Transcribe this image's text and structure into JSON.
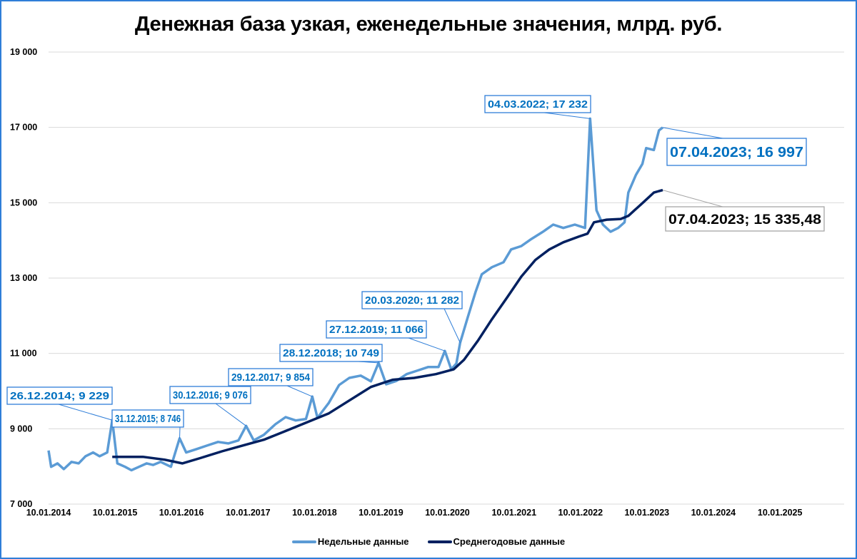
{
  "chart_data": {
    "type": "line",
    "title": "Денежная база узкая, еженедельные значения, млрд. руб.",
    "ylim": [
      7000,
      19000
    ],
    "yticks": [
      7000,
      9000,
      11000,
      13000,
      15000,
      17000,
      19000
    ],
    "ytick_labels": [
      "7 000",
      "9 000",
      "11 000",
      "13 000",
      "15 000",
      "17 000",
      "19 000"
    ],
    "xlim": [
      "2014-01-10",
      "2025-12-31"
    ],
    "xticks": [
      "2014-01-10",
      "2015-01-10",
      "2016-01-10",
      "2017-01-10",
      "2018-01-10",
      "2019-01-10",
      "2020-01-10",
      "2021-01-10",
      "2022-01-10",
      "2023-01-10",
      "2024-01-10",
      "2025-01-10"
    ],
    "xtick_labels": [
      "10.01.2014",
      "10.01.2015",
      "10.01.2016",
      "10.01.2017",
      "10.01.2018",
      "10.01.2019",
      "10.01.2020",
      "10.01.2021",
      "10.01.2022",
      "10.01.2023",
      "10.01.2024",
      "10.01.2025"
    ],
    "grid": "horizontal",
    "legend_position": "bottom",
    "series": [
      {
        "name": "Недельные данные",
        "color": "#5b9bd5",
        "points": [
          [
            "2014-01-10",
            8424
          ],
          [
            "2014-01-24",
            7990
          ],
          [
            "2014-02-28",
            8080
          ],
          [
            "2014-04-04",
            7930
          ],
          [
            "2014-05-16",
            8120
          ],
          [
            "2014-06-24",
            8080
          ],
          [
            "2014-08-01",
            8270
          ],
          [
            "2014-09-12",
            8370
          ],
          [
            "2014-10-17",
            8270
          ],
          [
            "2014-11-28",
            8370
          ],
          [
            "2014-12-26",
            9229
          ],
          [
            "2015-01-23",
            8080
          ],
          [
            "2015-03-06",
            7990
          ],
          [
            "2015-04-10",
            7900
          ],
          [
            "2015-05-22",
            7990
          ],
          [
            "2015-07-03",
            8080
          ],
          [
            "2015-08-07",
            8040
          ],
          [
            "2015-09-18",
            8120
          ],
          [
            "2015-11-13",
            7990
          ],
          [
            "2015-12-31",
            8746
          ],
          [
            "2016-02-05",
            8370
          ],
          [
            "2016-04-01",
            8460
          ],
          [
            "2016-05-27",
            8550
          ],
          [
            "2016-07-29",
            8650
          ],
          [
            "2016-09-23",
            8610
          ],
          [
            "2016-11-18",
            8690
          ],
          [
            "2016-12-30",
            9076
          ],
          [
            "2017-02-10",
            8690
          ],
          [
            "2017-04-07",
            8840
          ],
          [
            "2017-06-09",
            9120
          ],
          [
            "2017-08-04",
            9310
          ],
          [
            "2017-09-29",
            9220
          ],
          [
            "2017-11-24",
            9260
          ],
          [
            "2017-12-29",
            9854
          ],
          [
            "2018-01-26",
            9290
          ],
          [
            "2018-03-30",
            9690
          ],
          [
            "2018-05-25",
            10160
          ],
          [
            "2018-07-20",
            10350
          ],
          [
            "2018-09-21",
            10410
          ],
          [
            "2018-11-16",
            10260
          ],
          [
            "2018-12-28",
            10749
          ],
          [
            "2019-02-08",
            10180
          ],
          [
            "2019-04-05",
            10270
          ],
          [
            "2019-05-31",
            10450
          ],
          [
            "2019-07-26",
            10540
          ],
          [
            "2019-09-27",
            10640
          ],
          [
            "2019-11-22",
            10640
          ],
          [
            "2019-12-27",
            11066
          ],
          [
            "2020-01-31",
            10580
          ],
          [
            "2020-02-28",
            10730
          ],
          [
            "2020-03-20",
            11282
          ],
          [
            "2020-05-01",
            11960
          ],
          [
            "2020-06-12",
            12620
          ],
          [
            "2020-07-17",
            13100
          ],
          [
            "2020-09-11",
            13290
          ],
          [
            "2020-11-13",
            13420
          ],
          [
            "2020-12-25",
            13760
          ],
          [
            "2021-02-19",
            13850
          ],
          [
            "2021-04-16",
            14040
          ],
          [
            "2021-06-18",
            14230
          ],
          [
            "2021-08-13",
            14420
          ],
          [
            "2021-10-08",
            14330
          ],
          [
            "2021-12-10",
            14420
          ],
          [
            "2022-02-04",
            14330
          ],
          [
            "2022-03-04",
            17232
          ],
          [
            "2022-04-08",
            14800
          ],
          [
            "2022-05-13",
            14420
          ],
          [
            "2022-06-24",
            14230
          ],
          [
            "2022-08-05",
            14330
          ],
          [
            "2022-09-09",
            14480
          ],
          [
            "2022-09-30",
            15270
          ],
          [
            "2022-11-11",
            15740
          ],
          [
            "2022-12-16",
            16030
          ],
          [
            "2023-01-06",
            16450
          ],
          [
            "2023-02-17",
            16400
          ],
          [
            "2023-03-17",
            16920
          ],
          [
            "2023-04-07",
            16997
          ]
        ]
      },
      {
        "name": "Среднегодовые данные",
        "color": "#002060",
        "points": [
          [
            "2014-12-26",
            8255
          ],
          [
            "2015-06-12",
            8255
          ],
          [
            "2015-10-09",
            8180
          ],
          [
            "2016-01-15",
            8080
          ],
          [
            "2016-04-22",
            8220
          ],
          [
            "2016-08-19",
            8400
          ],
          [
            "2016-12-16",
            8560
          ],
          [
            "2017-04-07",
            8710
          ],
          [
            "2017-08-04",
            8940
          ],
          [
            "2017-11-24",
            9160
          ],
          [
            "2018-03-30",
            9410
          ],
          [
            "2018-07-20",
            9750
          ],
          [
            "2018-11-16",
            10110
          ],
          [
            "2019-03-15",
            10300
          ],
          [
            "2019-07-12",
            10350
          ],
          [
            "2019-11-08",
            10450
          ],
          [
            "2020-02-14",
            10580
          ],
          [
            "2020-04-10",
            10830
          ],
          [
            "2020-06-26",
            11340
          ],
          [
            "2020-09-11",
            11910
          ],
          [
            "2020-12-04",
            12490
          ],
          [
            "2021-02-19",
            13040
          ],
          [
            "2021-05-07",
            13480
          ],
          [
            "2021-07-23",
            13760
          ],
          [
            "2021-10-08",
            13950
          ],
          [
            "2021-12-31",
            14100
          ],
          [
            "2022-02-18",
            14180
          ],
          [
            "2022-03-25",
            14480
          ],
          [
            "2022-06-03",
            14550
          ],
          [
            "2022-08-19",
            14570
          ],
          [
            "2022-09-30",
            14650
          ],
          [
            "2022-12-16",
            14990
          ],
          [
            "2023-02-17",
            15270
          ],
          [
            "2023-03-17",
            15310
          ],
          [
            "2023-04-07",
            15335.48
          ]
        ]
      }
    ],
    "annotations": [
      {
        "label": "26.12.2014; 9 229",
        "date": "2014-12-26",
        "value": 9229,
        "series": 0
      },
      {
        "label": "31.12.2015; 8 746",
        "date": "2015-12-31",
        "value": 8746,
        "series": 0
      },
      {
        "label": "30.12.2016; 9 076",
        "date": "2016-12-30",
        "value": 9076,
        "series": 0
      },
      {
        "label": "29.12.2017; 9 854",
        "date": "2017-12-29",
        "value": 9854,
        "series": 0
      },
      {
        "label": "28.12.2018; 10 749",
        "date": "2018-12-28",
        "value": 10749,
        "series": 0
      },
      {
        "label": "27.12.2019; 11 066",
        "date": "2019-12-27",
        "value": 11066,
        "series": 0
      },
      {
        "label": "20.03.2020; 11 282",
        "date": "2020-03-20",
        "value": 11282,
        "series": 0
      },
      {
        "label": "04.03.2022; 17 232",
        "date": "2022-03-04",
        "value": 17232,
        "series": 0
      },
      {
        "label": "07.04.2023; 16 997",
        "date": "2023-04-07",
        "value": 16997,
        "series": 0
      },
      {
        "label": "07.04.2023; 15 335,48",
        "date": "2023-04-07",
        "value": 15335.48,
        "series": 1
      }
    ]
  },
  "legend": {
    "items": [
      {
        "label": "Недельные данные",
        "color": "#5b9bd5"
      },
      {
        "label": "Среднегодовые данные",
        "color": "#002060"
      }
    ]
  }
}
